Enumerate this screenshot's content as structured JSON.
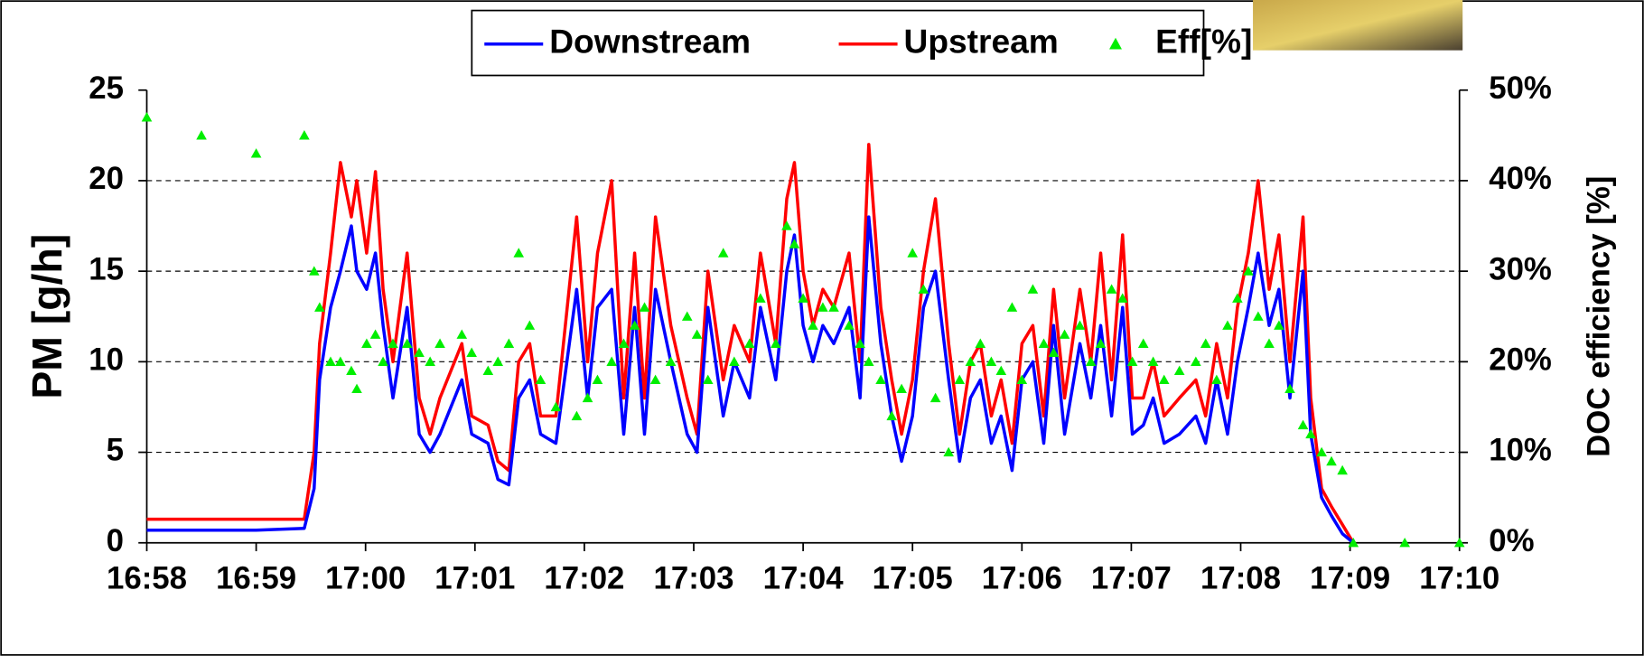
{
  "chart_data": {
    "type": "line",
    "y_label": "PM [g/h]",
    "y2_label": "DOC efficiency [%]",
    "x": [
      0,
      0.5,
      1.0,
      1.44,
      1.53,
      1.58,
      1.68,
      1.77,
      1.87,
      1.92,
      2.01,
      2.09,
      2.16,
      2.25,
      2.38,
      2.49,
      2.59,
      2.68,
      2.88,
      2.97,
      3.12,
      3.21,
      3.31,
      3.4,
      3.5,
      3.6,
      3.74,
      3.93,
      4.03,
      4.12,
      4.25,
      4.36,
      4.46,
      4.55,
      4.65,
      4.79,
      4.94,
      5.03,
      5.13,
      5.27,
      5.37,
      5.51,
      5.61,
      5.75,
      5.85,
      5.92,
      6.0,
      6.09,
      6.18,
      6.28,
      6.42,
      6.52,
      6.6,
      6.71,
      6.81,
      6.9,
      7.0,
      7.1,
      7.21,
      7.33,
      7.43,
      7.53,
      7.62,
      7.72,
      7.81,
      7.91,
      8.0,
      8.1,
      8.2,
      8.29,
      8.39,
      8.53,
      8.63,
      8.72,
      8.82,
      8.92,
      9.01,
      9.11,
      9.2,
      9.3,
      9.44,
      9.59,
      9.68,
      9.78,
      9.88,
      9.97,
      10.07,
      10.16,
      10.26,
      10.35,
      10.45,
      10.57,
      10.64,
      10.74,
      10.83,
      10.93,
      11.03,
      11.5,
      12.0
    ],
    "series": [
      {
        "name": "Downstream",
        "color": "#0000ff",
        "marker": "line",
        "values": [
          0.7,
          0.7,
          0.7,
          0.8,
          3,
          9,
          13,
          15,
          17.5,
          15,
          14,
          16,
          12,
          8,
          13,
          6,
          5,
          6,
          9,
          6,
          5.5,
          3.5,
          3.2,
          8,
          9,
          6,
          5.5,
          14,
          8,
          13,
          14,
          6,
          13,
          6,
          14,
          10,
          6,
          5,
          13,
          7,
          10,
          8,
          13,
          9,
          15,
          17,
          12,
          10,
          12,
          11,
          13,
          8,
          18,
          11,
          7,
          4.5,
          7,
          13,
          15,
          9,
          4.5,
          8,
          9,
          5.5,
          7,
          4,
          9,
          10,
          5.5,
          12,
          6,
          11,
          8,
          12,
          7,
          13,
          6,
          6.5,
          8,
          5.5,
          6,
          7,
          5.5,
          9,
          6,
          10,
          13,
          16,
          12,
          14,
          8,
          15,
          6,
          2.5,
          1.5,
          0.5,
          0,
          null,
          null
        ]
      },
      {
        "name": "Upstream",
        "color": "#ff0000",
        "marker": "line",
        "values": [
          1.3,
          1.3,
          1.3,
          1.3,
          5,
          11,
          16,
          21,
          18,
          20,
          16,
          20.5,
          14,
          10,
          16,
          8,
          6,
          8,
          11,
          7,
          6.5,
          4.5,
          4,
          10,
          11,
          7,
          7,
          18,
          10,
          16,
          20,
          8,
          16,
          8,
          18,
          12,
          8,
          6,
          15,
          9,
          12,
          10,
          16,
          11,
          19,
          21,
          15,
          12,
          14,
          13,
          16,
          10,
          22,
          13,
          9,
          6,
          9,
          15,
          19,
          11,
          6,
          10,
          11,
          7,
          9,
          5.5,
          11,
          12,
          7,
          14,
          8,
          14,
          10,
          16,
          9,
          17,
          8,
          8,
          10,
          7,
          8,
          9,
          7,
          11,
          8,
          13,
          16,
          20,
          14,
          17,
          10,
          18,
          8,
          3,
          2,
          1,
          0,
          null,
          null
        ]
      },
      {
        "name": "Eff[%]",
        "color": "#00ee00",
        "marker": "triangle",
        "axis": "y2",
        "values": [
          47,
          45,
          43,
          45,
          30,
          26,
          20,
          20,
          19,
          17,
          22,
          23,
          20,
          22,
          22,
          21,
          20,
          22,
          23,
          21,
          19,
          20,
          22,
          32,
          24,
          18,
          15,
          14,
          16,
          18,
          20,
          22,
          24,
          26,
          18,
          20,
          25,
          23,
          18,
          32,
          20,
          22,
          27,
          22,
          35,
          33,
          27,
          24,
          26,
          26,
          24,
          22,
          20,
          18,
          14,
          17,
          32,
          28,
          16,
          10,
          18,
          20,
          22,
          20,
          19,
          26,
          18,
          28,
          22,
          21,
          23,
          24,
          20,
          22,
          28,
          27,
          20,
          22,
          20,
          18,
          19,
          20,
          22,
          18,
          24,
          27,
          30,
          25,
          22,
          24,
          17,
          13,
          12,
          10,
          9,
          8,
          0,
          0,
          0
        ]
      }
    ],
    "xlim": [
      0,
      12
    ],
    "xticks": [
      {
        "value": 0,
        "label": "16:58"
      },
      {
        "value": 1,
        "label": "16:59"
      },
      {
        "value": 2,
        "label": "17:00"
      },
      {
        "value": 3,
        "label": "17:01"
      },
      {
        "value": 4,
        "label": "17:02"
      },
      {
        "value": 5,
        "label": "17:03"
      },
      {
        "value": 6,
        "label": "17:04"
      },
      {
        "value": 7,
        "label": "17:05"
      },
      {
        "value": 8,
        "label": "17:06"
      },
      {
        "value": 9,
        "label": "17:07"
      },
      {
        "value": 10,
        "label": "17:08"
      },
      {
        "value": 11,
        "label": "17:09"
      },
      {
        "value": 12,
        "label": "17:10"
      }
    ],
    "ylim": [
      0,
      25
    ],
    "yticks": [
      0,
      5,
      10,
      15,
      20,
      25
    ],
    "y2lim": [
      0,
      50
    ],
    "y2ticks": [
      {
        "value": 0,
        "label": "0%"
      },
      {
        "value": 10,
        "label": "10%"
      },
      {
        "value": 20,
        "label": "20%"
      },
      {
        "value": 30,
        "label": "30%"
      },
      {
        "value": 40,
        "label": "40%"
      },
      {
        "value": 50,
        "label": "50%"
      }
    ],
    "grid": true,
    "legend": "top"
  }
}
